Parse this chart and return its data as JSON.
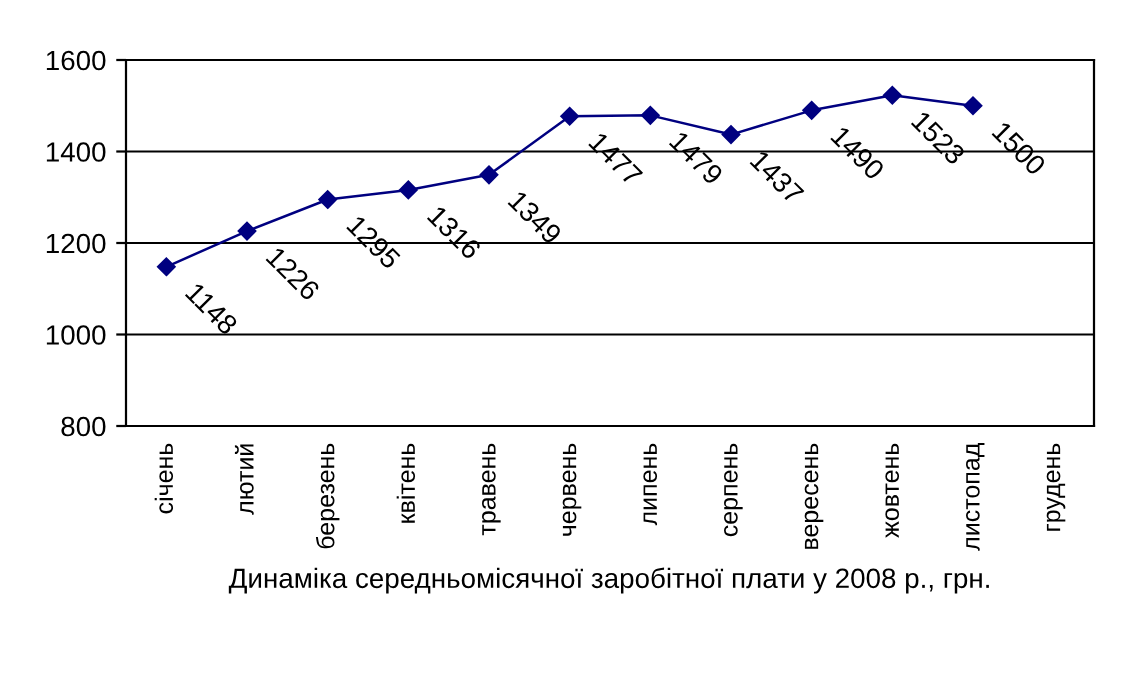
{
  "chart_data": {
    "type": "line",
    "xlabel": "Динаміка середньомісячної заробітної плати у 2008 р., грн.",
    "categories": [
      "січень",
      "лютий",
      "березень",
      "квітень",
      "травень",
      "червень",
      "липень",
      "серпень",
      "вересень",
      "жовтень",
      "листопад",
      "грудень"
    ],
    "series": [
      {
        "color": "#000080",
        "values": [
          1148,
          1226,
          1295,
          1316,
          1349,
          1477,
          1479,
          1437,
          1490,
          1523,
          1500,
          null
        ]
      }
    ],
    "ylim": [
      800,
      1600
    ],
    "yticks": [
      800,
      1000,
      1200,
      1400,
      1600
    ],
    "grid": "y",
    "marker": "diamond",
    "data_labels": true,
    "legend": false
  }
}
